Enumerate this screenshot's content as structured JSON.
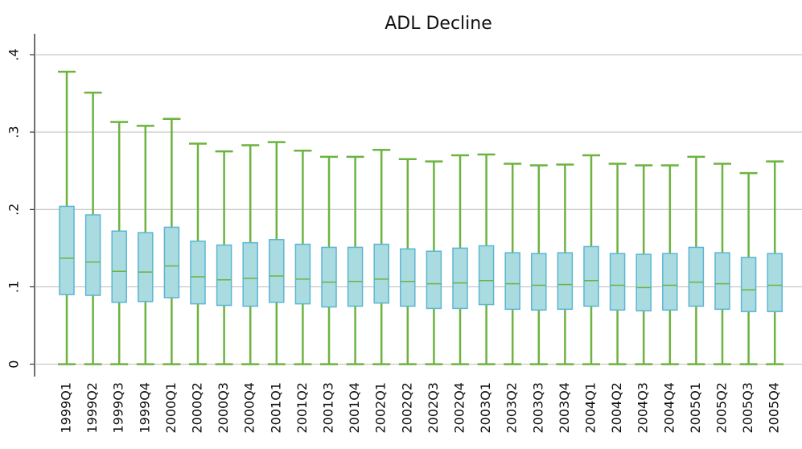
{
  "chart_data": {
    "type": "box",
    "title": "ADL Decline",
    "categories": [
      "1999Q1",
      "1999Q2",
      "1999Q3",
      "1999Q4",
      "2000Q1",
      "2000Q2",
      "2000Q3",
      "2000Q4",
      "2001Q1",
      "2001Q2",
      "2001Q3",
      "2001Q4",
      "2002Q1",
      "2002Q2",
      "2002Q3",
      "2002Q4",
      "2003Q1",
      "2003Q2",
      "2003Q3",
      "2003Q4",
      "2004Q1",
      "2004Q2",
      "2004Q3",
      "2004Q4",
      "2005Q1",
      "2005Q2",
      "2005Q3",
      "2005Q4"
    ],
    "min": [
      0,
      0,
      0,
      0,
      0,
      0,
      0,
      0,
      0,
      0,
      0,
      0,
      0,
      0,
      0,
      0,
      0,
      0,
      0,
      0,
      0,
      0,
      0,
      0,
      0,
      0,
      0,
      0
    ],
    "q1": [
      0.09,
      0.089,
      0.08,
      0.081,
      0.086,
      0.078,
      0.076,
      0.075,
      0.08,
      0.078,
      0.074,
      0.075,
      0.079,
      0.075,
      0.072,
      0.072,
      0.077,
      0.071,
      0.07,
      0.071,
      0.075,
      0.07,
      0.069,
      0.07,
      0.075,
      0.071,
      0.068,
      0.068
    ],
    "median": [
      0.137,
      0.132,
      0.12,
      0.119,
      0.127,
      0.113,
      0.109,
      0.111,
      0.114,
      0.11,
      0.106,
      0.107,
      0.11,
      0.107,
      0.104,
      0.105,
      0.108,
      0.104,
      0.102,
      0.103,
      0.108,
      0.102,
      0.099,
      0.102,
      0.106,
      0.104,
      0.096,
      0.102
    ],
    "q3": [
      0.204,
      0.193,
      0.172,
      0.17,
      0.177,
      0.159,
      0.154,
      0.157,
      0.161,
      0.155,
      0.151,
      0.151,
      0.155,
      0.149,
      0.146,
      0.15,
      0.153,
      0.144,
      0.143,
      0.144,
      0.152,
      0.143,
      0.142,
      0.143,
      0.151,
      0.144,
      0.138,
      0.143
    ],
    "max": [
      0.378,
      0.351,
      0.313,
      0.308,
      0.317,
      0.285,
      0.275,
      0.283,
      0.287,
      0.276,
      0.268,
      0.268,
      0.277,
      0.265,
      0.262,
      0.27,
      0.271,
      0.259,
      0.257,
      0.258,
      0.27,
      0.259,
      0.257,
      0.257,
      0.268,
      0.259,
      0.247,
      0.262
    ],
    "ylim": [
      -0.016,
      0.427
    ],
    "yticks": [
      0,
      {
        "value": 0.1,
        "label": ".1"
      },
      {
        "value": 0.2,
        "label": ".2"
      },
      {
        "value": 0.3,
        "label": ".3"
      },
      {
        "value": 0.4,
        "label": ".4"
      }
    ],
    "grid": true,
    "box_fill": "#a9dbe0",
    "box_stroke": "#5cb6d3",
    "whisker_color": "#6cb33f"
  }
}
